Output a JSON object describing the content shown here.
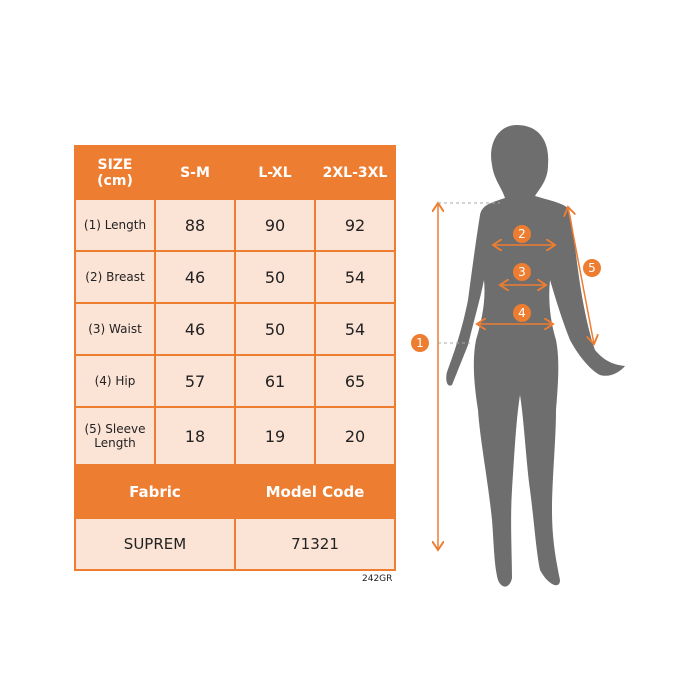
{
  "table": {
    "header": [
      "SIZE\n(cm)",
      "S-M",
      "L-XL",
      "2XL-3XL"
    ],
    "size_header_line1": "SIZE",
    "size_header_line2": "(cm)",
    "rows": [
      {
        "label": "(1) Length",
        "values": [
          "88",
          "90",
          "92"
        ]
      },
      {
        "label": "(2) Breast",
        "values": [
          "46",
          "50",
          "54"
        ]
      },
      {
        "label": "(3) Waist",
        "values": [
          "46",
          "50",
          "54"
        ]
      },
      {
        "label": "(4) Hip",
        "values": [
          "57",
          "61",
          "65"
        ]
      },
      {
        "label": "(5) Sleeve Length",
        "values": [
          "18",
          "19",
          "20"
        ]
      }
    ],
    "fabric_label": "Fabric",
    "model_code_label": "Model Code",
    "fabric": "SUPREM",
    "model_code": "71321"
  },
  "product_code": "242GR",
  "figure": {
    "markers": [
      "1",
      "2",
      "3",
      "4",
      "5"
    ]
  },
  "colors": {
    "accent": "#ED7D31",
    "cell": "#FBE3D6",
    "silhouette": "#6E6E6E"
  }
}
